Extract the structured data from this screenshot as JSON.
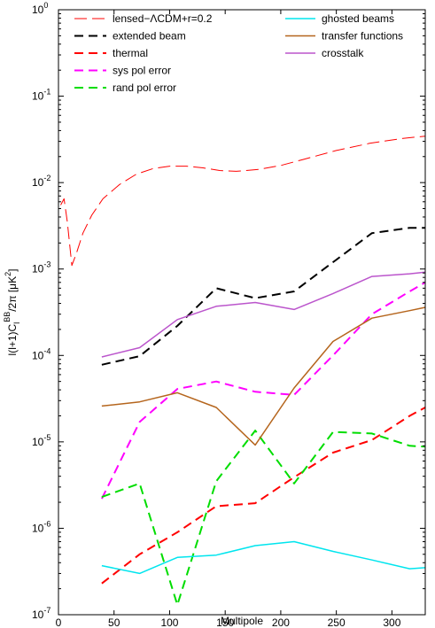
{
  "chart_data": {
    "type": "line",
    "xlabel": "Multipole",
    "ylabel_parts": [
      "l(l+1)C",
      "l",
      "BB",
      "/2π [μK",
      "2",
      "]"
    ],
    "xlim": [
      0,
      330
    ],
    "ylim": [
      1e-07,
      1
    ],
    "yscale": "log",
    "xticks": [
      0,
      50,
      100,
      150,
      200,
      250,
      300
    ],
    "xtick_labels": [
      "0",
      "50",
      "100",
      "150",
      "200",
      "250",
      "300"
    ],
    "yticks": [
      1e-07,
      1e-06,
      1e-05,
      0.0001,
      0.001,
      0.01,
      0.1,
      1
    ],
    "ytick_labels": [
      {
        "base": "10",
        "exp": "-7"
      },
      {
        "base": "10",
        "exp": "-6"
      },
      {
        "base": "10",
        "exp": "-5"
      },
      {
        "base": "10",
        "exp": "-4"
      },
      {
        "base": "10",
        "exp": "-3"
      },
      {
        "base": "10",
        "exp": "-2"
      },
      {
        "base": "10",
        "exp": "-1"
      },
      {
        "base": "10",
        "exp": "0"
      }
    ],
    "grid": false,
    "legend_position": "top",
    "series": [
      {
        "name": "lensed−ΛCDM+r=0.2",
        "color": "#ff0000",
        "style": "dashed-long",
        "width": 1,
        "x": [
          2,
          5,
          8,
          12,
          16,
          22,
          30,
          40,
          55,
          70,
          85,
          100,
          115,
          130,
          145,
          160,
          180,
          200,
          220,
          250,
          280,
          310,
          330
        ],
        "y": [
          0.0055,
          0.0065,
          0.0035,
          0.0011,
          0.0015,
          0.0026,
          0.0042,
          0.0065,
          0.0095,
          0.0125,
          0.0145,
          0.0155,
          0.0155,
          0.0148,
          0.0138,
          0.0135,
          0.0142,
          0.0158,
          0.0185,
          0.0235,
          0.0285,
          0.0325,
          0.0345
        ]
      },
      {
        "name": "extended beam",
        "color": "#000000",
        "style": "dashed",
        "width": 2,
        "x": [
          39,
          73,
          107,
          142,
          177,
          212,
          247,
          282,
          316,
          330
        ],
        "y": [
          7.8e-05,
          9.8e-05,
          0.00022,
          0.0006,
          0.00046,
          0.00055,
          0.0012,
          0.0026,
          0.003,
          0.003
        ]
      },
      {
        "name": "thermal",
        "color": "#ff0000",
        "style": "dashed",
        "width": 2,
        "x": [
          39,
          73,
          107,
          142,
          177,
          212,
          247,
          282,
          316,
          330
        ],
        "y": [
          2.3e-07,
          5e-07,
          9e-07,
          1.8e-06,
          1.95e-06,
          3.9e-06,
          7.5e-06,
          1.05e-05,
          2e-05,
          2.5e-05
        ]
      },
      {
        "name": "sys pol error",
        "color": "#ff00ff",
        "style": "dashed",
        "width": 2,
        "x": [
          39,
          73,
          107,
          142,
          177,
          212,
          247,
          282,
          316,
          330
        ],
        "y": [
          2.2e-06,
          1.7e-05,
          4.1e-05,
          5e-05,
          3.8e-05,
          3.5e-05,
          0.0001,
          0.0003,
          0.00055,
          0.0007
        ]
      },
      {
        "name": "rand pol error",
        "color": "#00dd00",
        "style": "dashed",
        "width": 2,
        "x": [
          39,
          73,
          107,
          142,
          177,
          212,
          247,
          282,
          316,
          330
        ],
        "y": [
          2.3e-06,
          3.3e-06,
          1.3e-07,
          3.5e-06,
          1.35e-05,
          3.3e-06,
          1.3e-05,
          1.25e-05,
          9e-06,
          8.8e-06
        ]
      },
      {
        "name": "ghosted beams",
        "color": "#00e5ee",
        "style": "solid",
        "width": 1.5,
        "x": [
          39,
          73,
          107,
          142,
          177,
          212,
          247,
          282,
          316,
          330
        ],
        "y": [
          3.7e-07,
          3e-07,
          4.6e-07,
          4.9e-07,
          6.3e-07,
          7e-07,
          5.4e-07,
          4.3e-07,
          3.4e-07,
          3.5e-07
        ]
      },
      {
        "name": "transfer functions",
        "color": "#b5651d",
        "style": "solid",
        "width": 1.5,
        "x": [
          39,
          73,
          107,
          142,
          177,
          212,
          247,
          282,
          316,
          330
        ],
        "y": [
          2.6e-05,
          2.9e-05,
          3.7e-05,
          2.5e-05,
          9.2e-06,
          4.2e-05,
          0.000145,
          0.00027,
          0.00033,
          0.00036
        ]
      },
      {
        "name": "crosstalk",
        "color": "#bb55cc",
        "style": "solid",
        "width": 1.5,
        "x": [
          39,
          73,
          107,
          142,
          177,
          212,
          247,
          282,
          316,
          330
        ],
        "y": [
          9.6e-05,
          0.000123,
          0.00026,
          0.00037,
          0.00041,
          0.00034,
          0.00052,
          0.00082,
          0.00088,
          0.00092
        ]
      }
    ]
  }
}
